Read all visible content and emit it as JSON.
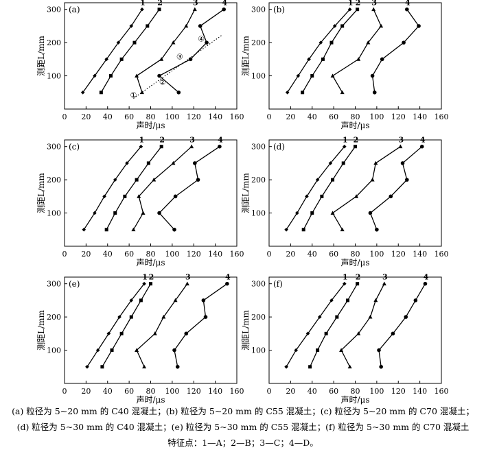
{
  "chart_data": [
    {
      "type": "line",
      "panel_label": "(a)",
      "xlabel": "声时/μs",
      "ylabel": "测距L/mm",
      "xlim": [
        0,
        160
      ],
      "ylim": [
        0,
        320
      ],
      "xticks": [
        "0",
        "20",
        "40",
        "60",
        "80",
        "100",
        "120",
        "140",
        "160"
      ],
      "yticks": [
        "100",
        "200",
        "300"
      ],
      "grid": false,
      "series": [
        {
          "name": "1",
          "marker": "diamond",
          "x": [
            17,
            28,
            39,
            50,
            62,
            72
          ],
          "y": [
            50,
            100,
            150,
            200,
            250,
            300
          ]
        },
        {
          "name": "2",
          "marker": "square",
          "x": [
            34,
            43,
            53,
            65,
            77,
            88
          ],
          "y": [
            50,
            100,
            150,
            200,
            250,
            300
          ]
        },
        {
          "name": "3",
          "marker": "triangle",
          "x": [
            72,
            67,
            90,
            101,
            113,
            121
          ],
          "y": [
            50,
            100,
            150,
            200,
            250,
            300
          ]
        },
        {
          "name": "4",
          "marker": "circle",
          "x": [
            106,
            88,
            117,
            132,
            126,
            148
          ],
          "y": [
            50,
            100,
            150,
            200,
            250,
            300
          ]
        }
      ],
      "annotations": [
        {
          "text": "①",
          "x": 64,
          "y": 42
        },
        {
          "text": "②",
          "x": 91,
          "y": 82
        },
        {
          "text": "③",
          "x": 107,
          "y": 158
        },
        {
          "text": "④",
          "x": 127,
          "y": 212
        }
      ],
      "trend_line": {
        "style": "dotted",
        "x": [
          64,
          146
        ],
        "y": [
          32,
          222
        ]
      }
    },
    {
      "type": "line",
      "panel_label": "(b)",
      "xlabel": "声时/μs",
      "ylabel": "测距L/mm",
      "xlim": [
        0,
        160
      ],
      "ylim": [
        0,
        320
      ],
      "xticks": [
        "0",
        "20",
        "40",
        "60",
        "80",
        "100",
        "120",
        "140",
        "160"
      ],
      "yticks": [
        "100",
        "200",
        "300"
      ],
      "grid": false,
      "series": [
        {
          "name": "1",
          "marker": "diamond",
          "x": [
            17,
            27,
            37,
            48,
            61,
            75
          ],
          "y": [
            50,
            100,
            150,
            200,
            250,
            300
          ]
        },
        {
          "name": "2",
          "marker": "square",
          "x": [
            31,
            40,
            50,
            58,
            68,
            82
          ],
          "y": [
            50,
            100,
            150,
            200,
            250,
            300
          ]
        },
        {
          "name": "3",
          "marker": "triangle",
          "x": [
            68,
            59,
            83,
            92,
            104,
            97
          ],
          "y": [
            50,
            100,
            150,
            200,
            250,
            300
          ]
        },
        {
          "name": "4",
          "marker": "circle",
          "x": [
            98,
            96,
            105,
            125,
            139,
            128
          ],
          "y": [
            50,
            100,
            150,
            200,
            250,
            300
          ]
        }
      ]
    },
    {
      "type": "line",
      "panel_label": "(c)",
      "xlabel": "声时/μs",
      "ylabel": "测距L/mm",
      "xlim": [
        0,
        160
      ],
      "ylim": [
        0,
        320
      ],
      "xticks": [
        "0",
        "20",
        "40",
        "60",
        "80",
        "100",
        "120",
        "140",
        "160"
      ],
      "yticks": [
        "100",
        "200",
        "300"
      ],
      "grid": false,
      "series": [
        {
          "name": "1",
          "marker": "diamond",
          "x": [
            18,
            28,
            37,
            47,
            58,
            71
          ],
          "y": [
            50,
            100,
            150,
            200,
            250,
            300
          ]
        },
        {
          "name": "2",
          "marker": "square",
          "x": [
            39,
            47,
            56,
            67,
            78,
            90
          ],
          "y": [
            50,
            100,
            150,
            200,
            250,
            300
          ]
        },
        {
          "name": "3",
          "marker": "triangle",
          "x": [
            64,
            73,
            69,
            83,
            101,
            118
          ],
          "y": [
            50,
            100,
            150,
            200,
            250,
            300
          ]
        },
        {
          "name": "4",
          "marker": "circle",
          "x": [
            102,
            88,
            103,
            124,
            121,
            144
          ],
          "y": [
            50,
            100,
            150,
            200,
            250,
            300
          ]
        }
      ]
    },
    {
      "type": "line",
      "panel_label": "(d)",
      "xlabel": "声时/μs",
      "ylabel": "测距L/mm",
      "xlim": [
        0,
        160
      ],
      "ylim": [
        0,
        320
      ],
      "xticks": [
        "0",
        "20",
        "40",
        "60",
        "80",
        "100",
        "120",
        "140",
        "160"
      ],
      "yticks": [
        "100",
        "200",
        "300"
      ],
      "grid": false,
      "series": [
        {
          "name": "1",
          "marker": "diamond",
          "x": [
            16,
            26,
            35,
            45,
            57,
            70
          ],
          "y": [
            50,
            100,
            150,
            200,
            250,
            300
          ]
        },
        {
          "name": "2",
          "marker": "square",
          "x": [
            32,
            40,
            49,
            59,
            69,
            80
          ],
          "y": [
            50,
            100,
            150,
            200,
            250,
            300
          ]
        },
        {
          "name": "3",
          "marker": "triangle",
          "x": [
            68,
            59,
            81,
            96,
            99,
            122
          ],
          "y": [
            50,
            100,
            150,
            200,
            250,
            300
          ]
        },
        {
          "name": "4",
          "marker": "circle",
          "x": [
            100,
            94,
            113,
            128,
            124,
            142
          ],
          "y": [
            50,
            100,
            150,
            200,
            250,
            300
          ]
        }
      ]
    },
    {
      "type": "line",
      "panel_label": "(e)",
      "xlabel": "声时/μs",
      "ylabel": "测距L/mm",
      "xlim": [
        0,
        160
      ],
      "ylim": [
        0,
        320
      ],
      "xticks": [
        "0",
        "20",
        "40",
        "60",
        "80",
        "100",
        "120",
        "140",
        "160"
      ],
      "yticks": [
        "100",
        "200",
        "300"
      ],
      "grid": false,
      "series": [
        {
          "name": "1",
          "marker": "diamond",
          "x": [
            21,
            31,
            41,
            51,
            62,
            74
          ],
          "y": [
            50,
            100,
            150,
            200,
            250,
            300
          ]
        },
        {
          "name": "2",
          "marker": "square",
          "x": [
            35,
            44,
            53,
            62,
            71,
            80
          ],
          "y": [
            50,
            100,
            150,
            200,
            250,
            300
          ]
        },
        {
          "name": "3",
          "marker": "triangle",
          "x": [
            74,
            67,
            84,
            92,
            103,
            114
          ],
          "y": [
            50,
            100,
            150,
            200,
            250,
            300
          ]
        },
        {
          "name": "4",
          "marker": "circle",
          "x": [
            105,
            102,
            113,
            131,
            129,
            151
          ],
          "y": [
            50,
            100,
            150,
            200,
            250,
            300
          ]
        }
      ]
    },
    {
      "type": "line",
      "panel_label": "(f)",
      "xlabel": "声时/μs",
      "ylabel": "测距L/mm",
      "xlim": [
        0,
        160
      ],
      "ylim": [
        0,
        320
      ],
      "xticks": [
        "0",
        "20",
        "40",
        "60",
        "80",
        "100",
        "120",
        "140",
        "160"
      ],
      "yticks": [
        "100",
        "200",
        "300"
      ],
      "grid": false,
      "series": [
        {
          "name": "1",
          "marker": "diamond",
          "x": [
            16,
            25,
            36,
            47,
            58,
            70
          ],
          "y": [
            50,
            100,
            150,
            200,
            250,
            300
          ]
        },
        {
          "name": "2",
          "marker": "square",
          "x": [
            38,
            45,
            53,
            63,
            73,
            82
          ],
          "y": [
            50,
            100,
            150,
            200,
            250,
            300
          ]
        },
        {
          "name": "3",
          "marker": "triangle",
          "x": [
            75,
            67,
            83,
            94,
            99,
            107
          ],
          "y": [
            50,
            100,
            150,
            200,
            250,
            300
          ]
        },
        {
          "name": "4",
          "marker": "circle",
          "x": [
            104,
            102,
            115,
            127,
            136,
            145
          ],
          "y": [
            50,
            100,
            150,
            200,
            250,
            300
          ]
        }
      ]
    }
  ],
  "caption": {
    "line1": "(a)  粒径为 5~20 mm 的 C40 混凝土；(b)  粒径为 5~20 mm 的 C55 混凝土；(c)  粒径为 5~20 mm 的 C70 混凝土；",
    "line2": "(d)  粒径为 5~30 mm 的 C40 混凝土；(e)  粒径为 5~30 mm 的 C55 混凝土；(f)  粒径为 5~30 mm 的 C70 混凝土",
    "line3": "特征点：1—A；2—B；3—C；4—D。"
  }
}
